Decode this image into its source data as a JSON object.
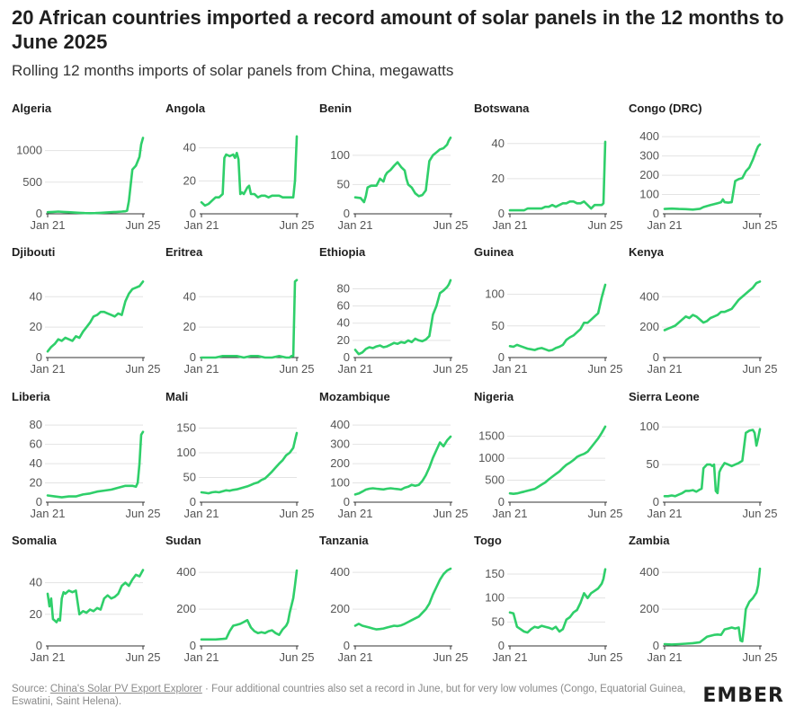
{
  "title": "20 African countries imported a record amount of solar panels in the 12 months to June 2025",
  "subtitle": "Rolling 12 months imports of solar panels from China, megawatts",
  "footer": {
    "prefix": "Source: ",
    "link_text": "China's Solar PV Export Explorer",
    "suffix": " · Four additional countries also set a record in June, but for very low volumes (Congo, Equatorial Guinea, Eswatini, Saint Helena)."
  },
  "brand": {
    "logo_text": "EMBER",
    "accent_color": "#22c55e"
  },
  "colors": {
    "line": "#2fcf6a",
    "grid": "#e3e3e3",
    "axis": "#333333"
  },
  "chart_data": [
    {
      "type": "line",
      "title": "Algeria",
      "xlabels": [
        "Jan 21",
        "Jun 25"
      ],
      "yticks": [
        0,
        500,
        1000
      ],
      "ylim": [
        0,
        1250
      ],
      "x": [
        0,
        3,
        6,
        9,
        12,
        15,
        18,
        21,
        24,
        27,
        30,
        33,
        36,
        39,
        42,
        43,
        44,
        45,
        46,
        48,
        50,
        52,
        53,
        54
      ],
      "values": [
        25,
        30,
        35,
        30,
        25,
        20,
        15,
        12,
        10,
        12,
        15,
        20,
        25,
        30,
        35,
        38,
        40,
        50,
        200,
        700,
        760,
        900,
        1100,
        1200
      ]
    },
    {
      "type": "line",
      "title": "Angola",
      "xlabels": [
        "Jan 21",
        "Jun 25"
      ],
      "yticks": [
        0,
        20,
        40
      ],
      "ylim": [
        0,
        48
      ],
      "x": [
        0,
        2,
        4,
        6,
        8,
        10,
        12,
        13,
        14,
        16,
        18,
        19,
        20,
        21,
        22,
        23,
        24,
        25,
        26,
        27,
        28,
        30,
        32,
        34,
        36,
        38,
        40,
        42,
        44,
        46,
        48,
        50,
        52,
        53,
        54
      ],
      "values": [
        7,
        5,
        6,
        8,
        10,
        10,
        12,
        34,
        36,
        35,
        36,
        34,
        37,
        33,
        12,
        13,
        12,
        14,
        16,
        17,
        12,
        12,
        10,
        11,
        11,
        10,
        11,
        11,
        11,
        10,
        10,
        10,
        10,
        20,
        47
      ]
    },
    {
      "type": "line",
      "title": "Benin",
      "xlabels": [
        "Jan 21",
        "Jun 25"
      ],
      "yticks": [
        0,
        50,
        100
      ],
      "ylim": [
        0,
        135
      ],
      "x": [
        0,
        3,
        5,
        6,
        7,
        9,
        12,
        14,
        16,
        17,
        18,
        20,
        22,
        24,
        26,
        28,
        29,
        30,
        32,
        34,
        36,
        38,
        40,
        42,
        44,
        46,
        48,
        50,
        52,
        53,
        54
      ],
      "values": [
        28,
        27,
        20,
        30,
        45,
        48,
        48,
        60,
        55,
        65,
        70,
        75,
        82,
        88,
        80,
        74,
        60,
        50,
        45,
        35,
        30,
        32,
        40,
        90,
        100,
        105,
        110,
        112,
        118,
        125,
        130
      ]
    },
    {
      "type": "line",
      "title": "Botswana",
      "xlabels": [
        "Jan 21",
        "Jun 25"
      ],
      "yticks": [
        0,
        20,
        40
      ],
      "ylim": [
        0,
        45
      ],
      "x": [
        0,
        4,
        8,
        10,
        14,
        18,
        20,
        22,
        24,
        26,
        28,
        30,
        32,
        34,
        36,
        38,
        40,
        42,
        44,
        46,
        48,
        50,
        52,
        53,
        54
      ],
      "values": [
        2,
        2,
        2,
        3,
        3,
        3,
        4,
        4,
        5,
        4,
        5,
        6,
        6,
        7,
        7,
        6,
        6,
        7,
        5,
        3,
        5,
        5,
        5,
        6,
        41
      ]
    },
    {
      "type": "line",
      "title": "Congo (DRC)",
      "xlabels": [
        "Jan 21",
        "Jun 25"
      ],
      "yticks": [
        0,
        100,
        200,
        300,
        400
      ],
      "ylim": [
        0,
        410
      ],
      "x": [
        0,
        4,
        8,
        12,
        16,
        20,
        22,
        24,
        26,
        28,
        30,
        32,
        33,
        34,
        36,
        38,
        40,
        42,
        44,
        46,
        48,
        50,
        52,
        53,
        54
      ],
      "values": [
        25,
        27,
        25,
        24,
        22,
        26,
        35,
        40,
        45,
        50,
        55,
        60,
        75,
        60,
        58,
        60,
        170,
        180,
        185,
        220,
        240,
        280,
        330,
        350,
        360
      ]
    },
    {
      "type": "line",
      "title": "Djibouti",
      "xlabels": [
        "Jan 21",
        "Jun 25"
      ],
      "yticks": [
        0,
        20,
        40
      ],
      "ylim": [
        0,
        52
      ],
      "x": [
        0,
        2,
        4,
        6,
        8,
        10,
        12,
        14,
        16,
        18,
        20,
        22,
        24,
        26,
        28,
        30,
        32,
        34,
        36,
        38,
        40,
        42,
        44,
        46,
        48,
        50,
        52,
        54
      ],
      "values": [
        4,
        7,
        9,
        12,
        11,
        13,
        12,
        11,
        14,
        13,
        17,
        20,
        23,
        27,
        28,
        30,
        30,
        29,
        28,
        27,
        29,
        28,
        37,
        42,
        45,
        46,
        47,
        50
      ]
    },
    {
      "type": "line",
      "title": "Eritrea",
      "xlabels": [
        "Jan 21",
        "Jun 25"
      ],
      "yticks": [
        0,
        20,
        40
      ],
      "ylim": [
        0,
        52
      ],
      "x": [
        0,
        4,
        8,
        12,
        16,
        20,
        24,
        28,
        32,
        36,
        40,
        44,
        48,
        50,
        51,
        52,
        53,
        54
      ],
      "values": [
        0,
        0,
        0,
        1,
        1,
        1,
        0,
        1,
        1,
        0,
        0,
        1,
        0,
        0,
        1,
        1,
        50,
        51
      ]
    },
    {
      "type": "line",
      "title": "Ethiopia",
      "xlabels": [
        "Jan 21",
        "Jun 25"
      ],
      "yticks": [
        0,
        20,
        40,
        60,
        80
      ],
      "ylim": [
        0,
        92
      ],
      "x": [
        0,
        2,
        4,
        6,
        8,
        10,
        12,
        14,
        16,
        18,
        20,
        22,
        24,
        26,
        28,
        30,
        32,
        34,
        36,
        38,
        40,
        42,
        44,
        46,
        48,
        50,
        52,
        53,
        54
      ],
      "values": [
        9,
        4,
        6,
        10,
        12,
        11,
        13,
        14,
        12,
        13,
        15,
        17,
        16,
        18,
        17,
        20,
        18,
        22,
        20,
        19,
        21,
        25,
        50,
        60,
        75,
        78,
        82,
        85,
        90
      ]
    },
    {
      "type": "line",
      "title": "Guinea",
      "xlabels": [
        "Jan 21",
        "Jun 25"
      ],
      "yticks": [
        0,
        50,
        100
      ],
      "ylim": [
        0,
        125
      ],
      "x": [
        0,
        2,
        4,
        6,
        8,
        10,
        12,
        14,
        16,
        18,
        20,
        22,
        24,
        26,
        28,
        30,
        32,
        34,
        36,
        38,
        40,
        42,
        44,
        46,
        48,
        50,
        52,
        53,
        54
      ],
      "values": [
        18,
        17,
        20,
        18,
        16,
        14,
        13,
        12,
        14,
        15,
        13,
        11,
        12,
        15,
        17,
        20,
        28,
        32,
        35,
        40,
        45,
        55,
        55,
        60,
        65,
        70,
        95,
        105,
        115
      ]
    },
    {
      "type": "line",
      "title": "Kenya",
      "xlabels": [
        "Jan 21",
        "Jun 25"
      ],
      "yticks": [
        0,
        200,
        400
      ],
      "ylim": [
        0,
        520
      ],
      "x": [
        0,
        2,
        4,
        6,
        8,
        10,
        12,
        14,
        16,
        18,
        20,
        22,
        24,
        26,
        28,
        30,
        32,
        34,
        36,
        38,
        40,
        42,
        44,
        46,
        48,
        50,
        52,
        54
      ],
      "values": [
        180,
        190,
        200,
        210,
        230,
        250,
        270,
        260,
        280,
        270,
        250,
        230,
        240,
        260,
        270,
        280,
        300,
        300,
        310,
        320,
        350,
        380,
        400,
        420,
        440,
        460,
        490,
        500
      ]
    },
    {
      "type": "line",
      "title": "Liberia",
      "xlabels": [
        "Jan 21",
        "Jun 25"
      ],
      "yticks": [
        0,
        20,
        40,
        60,
        80
      ],
      "ylim": [
        0,
        82
      ],
      "x": [
        0,
        4,
        8,
        12,
        16,
        20,
        24,
        28,
        32,
        36,
        40,
        44,
        48,
        50,
        51,
        52,
        53,
        54
      ],
      "values": [
        7,
        6,
        5,
        6,
        6,
        8,
        9,
        11,
        12,
        13,
        15,
        17,
        17,
        16,
        20,
        40,
        70,
        73
      ]
    },
    {
      "type": "line",
      "title": "Mali",
      "xlabels": [
        "Jan 21",
        "Jun 25"
      ],
      "yticks": [
        0,
        50,
        100,
        150
      ],
      "ylim": [
        0,
        160
      ],
      "x": [
        0,
        2,
        4,
        6,
        8,
        10,
        12,
        14,
        16,
        18,
        20,
        22,
        24,
        26,
        28,
        30,
        32,
        34,
        36,
        38,
        40,
        42,
        44,
        46,
        48,
        50,
        52,
        53,
        54
      ],
      "values": [
        20,
        19,
        18,
        20,
        21,
        20,
        22,
        24,
        23,
        25,
        26,
        28,
        30,
        32,
        35,
        38,
        40,
        45,
        48,
        55,
        62,
        70,
        78,
        85,
        95,
        100,
        110,
        125,
        140
      ]
    },
    {
      "type": "line",
      "title": "Mozambique",
      "xlabels": [
        "Jan 21",
        "Jun 25"
      ],
      "yticks": [
        0,
        100,
        200,
        300,
        400
      ],
      "ylim": [
        0,
        410
      ],
      "x": [
        0,
        2,
        4,
        6,
        8,
        10,
        12,
        14,
        16,
        18,
        20,
        22,
        24,
        26,
        28,
        30,
        32,
        34,
        36,
        38,
        40,
        42,
        44,
        46,
        48,
        50,
        52,
        54
      ],
      "values": [
        40,
        45,
        55,
        65,
        70,
        72,
        70,
        68,
        66,
        70,
        72,
        70,
        68,
        65,
        75,
        80,
        90,
        85,
        90,
        110,
        140,
        180,
        230,
        270,
        310,
        290,
        320,
        340
      ]
    },
    {
      "type": "line",
      "title": "Nigeria",
      "xlabels": [
        "Jan 21",
        "Jun 25"
      ],
      "yticks": [
        0,
        500,
        1000,
        1500
      ],
      "ylim": [
        0,
        1800
      ],
      "x": [
        0,
        2,
        4,
        6,
        8,
        10,
        12,
        14,
        16,
        18,
        20,
        22,
        24,
        26,
        28,
        30,
        32,
        34,
        36,
        38,
        40,
        42,
        44,
        46,
        48,
        50,
        52,
        54
      ],
      "values": [
        200,
        190,
        200,
        220,
        240,
        260,
        280,
        300,
        350,
        400,
        450,
        520,
        580,
        640,
        700,
        780,
        850,
        900,
        960,
        1030,
        1070,
        1100,
        1150,
        1250,
        1350,
        1450,
        1580,
        1720
      ]
    },
    {
      "type": "line",
      "title": "Sierra Leone",
      "xlabels": [
        "Jan 21",
        "Jun 25"
      ],
      "yticks": [
        0,
        50,
        100
      ],
      "ylim": [
        0,
        105
      ],
      "x": [
        0,
        2,
        4,
        6,
        8,
        10,
        12,
        14,
        16,
        18,
        20,
        21,
        22,
        24,
        26,
        27,
        28,
        29,
        30,
        31,
        32,
        34,
        36,
        38,
        40,
        42,
        44,
        46,
        48,
        50,
        51,
        52,
        53,
        54
      ],
      "values": [
        8,
        8,
        9,
        8,
        10,
        12,
        15,
        15,
        16,
        14,
        17,
        18,
        45,
        50,
        50,
        48,
        50,
        15,
        12,
        40,
        45,
        52,
        50,
        48,
        50,
        52,
        55,
        92,
        95,
        96,
        92,
        75,
        85,
        97
      ]
    },
    {
      "type": "line",
      "title": "Somalia",
      "xlabels": [
        "Jan 21",
        "Jun 25"
      ],
      "yticks": [
        0,
        20,
        40
      ],
      "ylim": [
        0,
        50
      ],
      "x": [
        0,
        1,
        2,
        3,
        4,
        5,
        6,
        7,
        8,
        9,
        10,
        12,
        14,
        16,
        18,
        20,
        22,
        24,
        26,
        28,
        30,
        32,
        34,
        36,
        38,
        40,
        42,
        44,
        46,
        48,
        50,
        52,
        54
      ],
      "values": [
        33,
        25,
        30,
        17,
        16,
        15,
        17,
        16,
        30,
        34,
        33,
        35,
        34,
        35,
        20,
        22,
        21,
        23,
        22,
        24,
        23,
        30,
        32,
        30,
        31,
        33,
        38,
        40,
        38,
        42,
        45,
        44,
        48
      ]
    },
    {
      "type": "line",
      "title": "Sudan",
      "xlabels": [
        "Jan 21",
        "Jun 25"
      ],
      "yticks": [
        0,
        200,
        400
      ],
      "ylim": [
        0,
        430
      ],
      "x": [
        0,
        4,
        8,
        12,
        14,
        16,
        18,
        20,
        22,
        24,
        26,
        28,
        30,
        32,
        34,
        36,
        38,
        40,
        42,
        44,
        46,
        48,
        49,
        50,
        52,
        53,
        54
      ],
      "values": [
        35,
        35,
        35,
        38,
        40,
        80,
        110,
        115,
        120,
        130,
        140,
        100,
        80,
        70,
        75,
        70,
        80,
        85,
        70,
        60,
        90,
        110,
        130,
        180,
        260,
        330,
        410
      ]
    },
    {
      "type": "line",
      "title": "Tanzania",
      "xlabels": [
        "Jan 21",
        "Jun 25"
      ],
      "yticks": [
        0,
        200,
        400
      ],
      "ylim": [
        0,
        430
      ],
      "x": [
        0,
        2,
        4,
        6,
        8,
        10,
        12,
        14,
        16,
        18,
        20,
        22,
        24,
        26,
        28,
        30,
        32,
        34,
        36,
        38,
        40,
        42,
        44,
        46,
        48,
        50,
        52,
        54
      ],
      "values": [
        110,
        120,
        110,
        105,
        100,
        95,
        90,
        92,
        95,
        100,
        105,
        110,
        108,
        112,
        120,
        130,
        140,
        150,
        160,
        180,
        200,
        230,
        280,
        320,
        360,
        390,
        410,
        420
      ]
    },
    {
      "type": "line",
      "title": "Togo",
      "xlabels": [
        "Jan 21",
        "Jun 25"
      ],
      "yticks": [
        0,
        50,
        100,
        150
      ],
      "ylim": [
        0,
        165
      ],
      "x": [
        0,
        2,
        4,
        6,
        8,
        10,
        12,
        14,
        16,
        18,
        20,
        22,
        24,
        26,
        28,
        30,
        32,
        34,
        36,
        38,
        40,
        42,
        44,
        46,
        48,
        50,
        52,
        53,
        54
      ],
      "values": [
        70,
        68,
        40,
        35,
        30,
        28,
        35,
        40,
        38,
        42,
        40,
        38,
        35,
        40,
        30,
        35,
        55,
        60,
        70,
        75,
        90,
        110,
        100,
        110,
        115,
        120,
        130,
        140,
        160
      ]
    },
    {
      "type": "line",
      "title": "Zambia",
      "xlabels": [
        "Jan 21",
        "Jun 25"
      ],
      "yticks": [
        0,
        200,
        400
      ],
      "ylim": [
        0,
        430
      ],
      "x": [
        0,
        4,
        8,
        12,
        16,
        20,
        24,
        26,
        28,
        30,
        32,
        34,
        36,
        38,
        40,
        42,
        43,
        44,
        45,
        46,
        48,
        50,
        52,
        53,
        54
      ],
      "values": [
        10,
        8,
        10,
        12,
        15,
        20,
        50,
        55,
        60,
        62,
        60,
        90,
        95,
        100,
        95,
        100,
        30,
        25,
        100,
        200,
        240,
        260,
        290,
        330,
        420
      ]
    }
  ]
}
